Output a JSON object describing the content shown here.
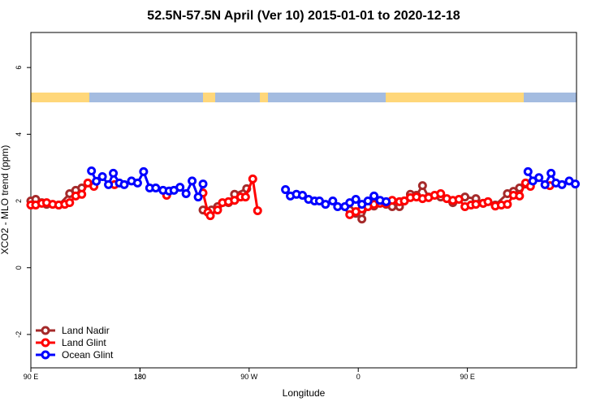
{
  "chart_data": {
    "type": "line",
    "title": "52.5N-57.5N April (Ver 10)   2015-01-01 to 2020-12-18",
    "xlabel": "Longitude",
    "ylabel": "XCO2 - MLO trend (ppm)",
    "xlim": [
      90,
      540
    ],
    "xticks": [
      {
        "value": 90,
        "label": "90 E"
      },
      180,
      {
        "value": 270,
        "label": "90 W"
      },
      {
        "value": 360,
        "label": "0"
      },
      {
        "value": 450,
        "label": "90 E"
      },
      180.0001
    ],
    "ylim": [
      -3,
      7.05
    ],
    "yticks": [
      -2,
      0,
      2,
      4,
      6
    ],
    "legend": "bottom-left",
    "series": [
      {
        "name": "Land Nadir",
        "color": "#a52a2a",
        "x": [
          90,
          94,
          99,
          103,
          113,
          122,
          127,
          132,
          null,
          232,
          239,
          244,
          253,
          258,
          268,
          null,
          353,
          358,
          363,
          368,
          373,
          383,
          388,
          394,
          398,
          403,
          408,
          413,
          418,
          428,
          438,
          448,
          457,
          463,
          473,
          483,
          488,
          493,
          498
        ],
        "values": [
          2.0,
          2.05,
          1.95,
          1.9,
          1.88,
          2.22,
          2.32,
          2.39,
          null,
          1.73,
          1.73,
          1.83,
          1.95,
          2.2,
          2.37,
          null,
          1.73,
          1.63,
          1.46,
          1.88,
          1.85,
          1.9,
          1.83,
          1.83,
          2.0,
          2.2,
          2.17,
          2.46,
          2.12,
          2.12,
          1.95,
          2.12,
          2.07,
          1.93,
          1.88,
          2.22,
          2.29,
          2.39,
          2.51
        ]
      },
      {
        "name": "Land Glint",
        "color": "#ff0000",
        "x": [
          90,
          94,
          99,
          103,
          108,
          113,
          118,
          122,
          127,
          132,
          137,
          142,
          null,
          159,
          null,
          202,
          null,
          232,
          236,
          238,
          244,
          248,
          253,
          258,
          263,
          267,
          273,
          277,
          null,
          353,
          358,
          363,
          368,
          373,
          378,
          383,
          388,
          394,
          398,
          403,
          408,
          413,
          418,
          423,
          428,
          433,
          438,
          443,
          448,
          453,
          457,
          463,
          467,
          473,
          478,
          483,
          488,
          493,
          498,
          502,
          null,
          518
        ],
        "values": [
          1.88,
          1.88,
          1.93,
          1.95,
          1.9,
          1.88,
          1.9,
          1.95,
          2.15,
          2.2,
          2.54,
          2.44,
          null,
          2.49,
          null,
          2.17,
          null,
          2.24,
          1.66,
          1.56,
          1.73,
          1.95,
          1.98,
          2.02,
          2.12,
          2.12,
          2.66,
          1.71,
          null,
          1.59,
          1.68,
          1.76,
          1.83,
          1.9,
          1.93,
          1.93,
          2.02,
          1.98,
          2.0,
          2.1,
          2.12,
          2.07,
          2.1,
          2.17,
          2.22,
          2.07,
          2.02,
          2.05,
          1.83,
          1.88,
          1.9,
          1.93,
          1.98,
          1.85,
          1.88,
          1.9,
          2.17,
          2.15,
          2.54,
          2.44,
          null,
          2.46
        ]
      },
      {
        "name": "Ocean Glint",
        "color": "#0000ff",
        "x": [
          140,
          144,
          149,
          154,
          158,
          163,
          167,
          173,
          178,
          183,
          188,
          193,
          199,
          204,
          208,
          213,
          218,
          223,
          228,
          232,
          null,
          300,
          304,
          309,
          314,
          319,
          324,
          328,
          333,
          339,
          343,
          349,
          353,
          358,
          363,
          368,
          373,
          378,
          383,
          null,
          500,
          504,
          509,
          514,
          519,
          523,
          528,
          534,
          539
        ],
        "values": [
          2.9,
          2.59,
          2.73,
          2.49,
          2.83,
          2.54,
          2.49,
          2.6,
          2.54,
          2.88,
          2.39,
          2.39,
          2.32,
          2.3,
          2.32,
          2.41,
          2.22,
          2.6,
          2.12,
          2.51,
          null,
          2.34,
          2.15,
          2.2,
          2.17,
          2.05,
          2.0,
          2.0,
          1.9,
          2.0,
          1.83,
          1.83,
          1.95,
          2.05,
          1.9,
          2.0,
          2.15,
          2.02,
          1.98,
          null,
          2.88,
          2.6,
          2.7,
          2.49,
          2.83,
          2.54,
          2.49,
          2.6,
          2.51
        ]
      }
    ]
  }
}
